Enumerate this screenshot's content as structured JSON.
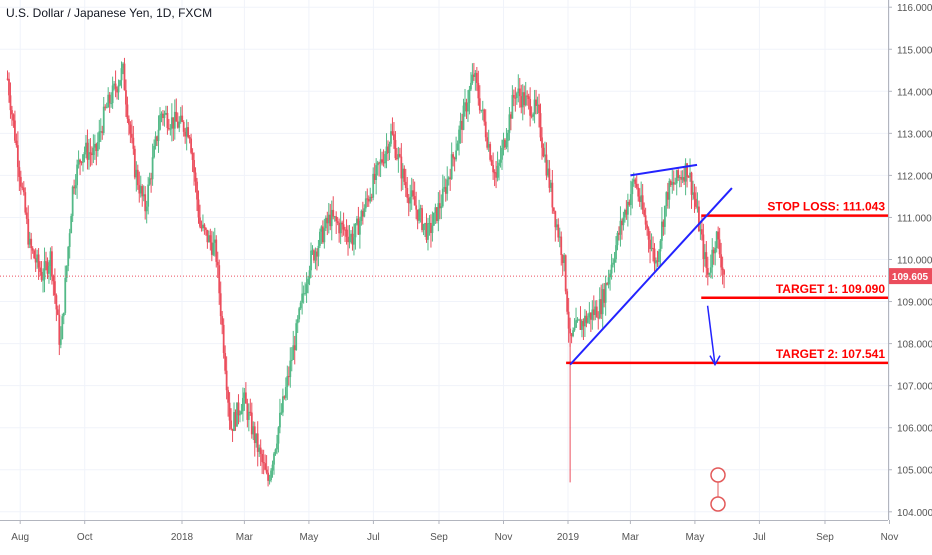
{
  "chart_data": {
    "type": "candlestick",
    "title": "U.S. Dollar / Japanese Yen, 1D, FXCM",
    "x_tick_labels": [
      "Aug",
      "Oct",
      "2018",
      "Mar",
      "May",
      "Jul",
      "Sep",
      "Nov",
      "2019",
      "Mar",
      "May",
      "Jul",
      "Sep",
      "Nov"
    ],
    "y_tick_labels": [
      "104.000",
      "105.000",
      "106.000",
      "107.000",
      "108.000",
      "109.000",
      "110.000",
      "111.000",
      "112.000",
      "113.000",
      "114.000",
      "115.000",
      "116.000"
    ],
    "ylim": [
      103.9,
      116.1
    ],
    "last_price": "109.605",
    "price_path": [
      [
        "2017-07-20",
        114.3
      ],
      [
        "2017-08-01",
        112.0
      ],
      [
        "2017-08-10",
        110.3
      ],
      [
        "2017-08-22",
        109.6
      ],
      [
        "2017-08-30",
        110.1
      ],
      [
        "2017-09-08",
        107.9
      ],
      [
        "2017-09-20",
        111.8
      ],
      [
        "2017-09-29",
        112.6
      ],
      [
        "2017-10-11",
        112.5
      ],
      [
        "2017-10-20",
        113.5
      ],
      [
        "2017-11-06",
        114.5
      ],
      [
        "2017-11-17",
        112.2
      ],
      [
        "2017-11-27",
        111.2
      ],
      [
        "2017-12-12",
        113.5
      ],
      [
        "2017-12-22",
        113.3
      ],
      [
        "2018-01-08",
        113.1
      ],
      [
        "2018-01-18",
        110.8
      ],
      [
        "2018-02-02",
        110.2
      ],
      [
        "2018-02-16",
        106.0
      ],
      [
        "2018-02-28",
        106.7
      ],
      [
        "2018-03-23",
        104.7
      ],
      [
        "2018-04-10",
        107.0
      ],
      [
        "2018-05-01",
        109.9
      ],
      [
        "2018-05-21",
        111.0
      ],
      [
        "2018-06-12",
        110.5
      ],
      [
        "2018-07-18",
        113.0
      ],
      [
        "2018-08-01",
        111.7
      ],
      [
        "2018-08-22",
        110.6
      ],
      [
        "2018-09-05",
        111.5
      ],
      [
        "2018-10-04",
        114.4
      ],
      [
        "2018-10-25",
        111.9
      ],
      [
        "2018-11-12",
        114.0
      ],
      [
        "2018-12-03",
        113.5
      ],
      [
        "2018-12-20",
        111.0
      ],
      [
        "2018-12-28",
        110.0
      ],
      [
        "2019-01-03",
        108.0
      ],
      [
        "2019-01-10",
        108.4
      ],
      [
        "2019-02-01",
        108.9
      ],
      [
        "2019-02-20",
        110.8
      ],
      [
        "2019-03-05",
        111.9
      ],
      [
        "2019-03-25",
        109.9
      ],
      [
        "2019-04-05",
        111.6
      ],
      [
        "2019-04-24",
        112.2
      ],
      [
        "2019-05-01",
        111.4
      ],
      [
        "2019-05-13",
        109.6
      ],
      [
        "2019-05-21",
        110.6
      ],
      [
        "2019-05-29",
        109.6
      ]
    ],
    "annotations": [
      {
        "type": "horizontal",
        "label": "STOP LOSS: 111.043",
        "price": 111.043,
        "color": "#ff0000"
      },
      {
        "type": "horizontal",
        "label": "TARGET 1: 109.090",
        "price": 109.09,
        "color": "#ff0000"
      },
      {
        "type": "horizontal",
        "label": "TARGET 2: 107.541",
        "price": 107.541,
        "color": "#ff0000"
      },
      {
        "type": "trendline",
        "from": [
          "2019-01-03",
          107.5
        ],
        "to": [
          "2019-06-05",
          111.7
        ],
        "color": "#2323ff"
      },
      {
        "type": "trendline",
        "from": [
          "2019-03-01",
          112.0
        ],
        "to": [
          "2019-05-03",
          112.25
        ],
        "color": "#2323ff"
      },
      {
        "type": "arrow",
        "from": [
          "2019-05-13",
          108.9
        ],
        "to": [
          "2019-05-20",
          107.5
        ],
        "color": "#2323ff"
      }
    ],
    "colors": {
      "up": "#53b987",
      "down": "#eb4d5c",
      "accent": "#ff0000",
      "line": "#2323ff"
    }
  }
}
